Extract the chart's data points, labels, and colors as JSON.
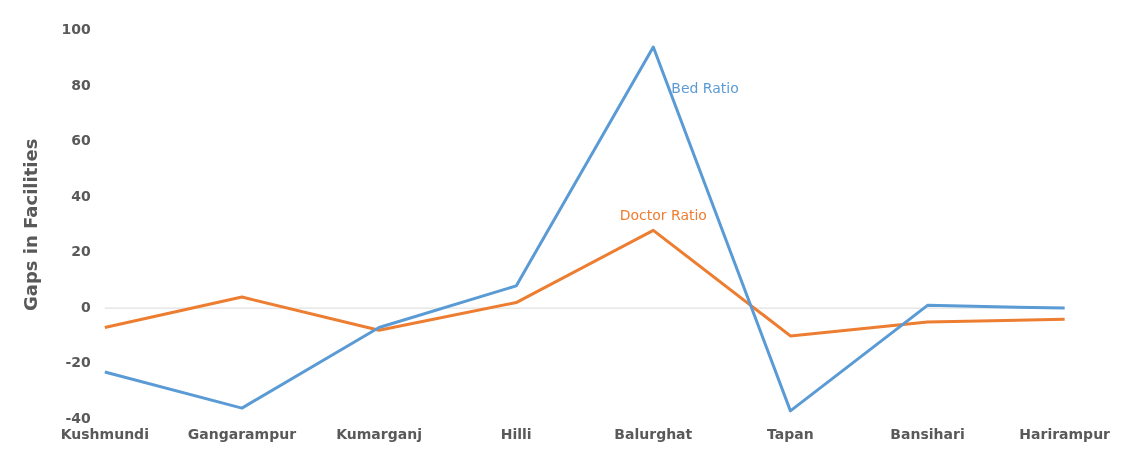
{
  "chart_data": {
    "type": "line",
    "ylabel": "Gaps in Facilities",
    "categories": [
      "Kushmundi",
      "Gangarampur",
      "Kumarganj",
      "Hilli",
      "Balurghat",
      "Tapan",
      "Bansihari",
      "Harirampur"
    ],
    "series": [
      {
        "name": "Bed Ratio",
        "color": "#5b9bd5",
        "values": [
          -23,
          -36,
          -7,
          8,
          94,
          -37,
          1,
          0
        ]
      },
      {
        "name": "Doctor Ratio",
        "color": "#ed7d31",
        "values": [
          -7,
          4,
          -8,
          2,
          28,
          -10,
          -5,
          -4
        ]
      }
    ],
    "ylim": [
      -40,
      100
    ],
    "yticks": [
      -40,
      -20,
      0,
      20,
      40,
      60,
      80,
      100
    ],
    "ref_lines": [
      {
        "axis": "y",
        "value": 0,
        "color": "#d9d9d9"
      }
    ],
    "grid": false,
    "legend": false,
    "marker": "none",
    "line_style": "solid"
  }
}
